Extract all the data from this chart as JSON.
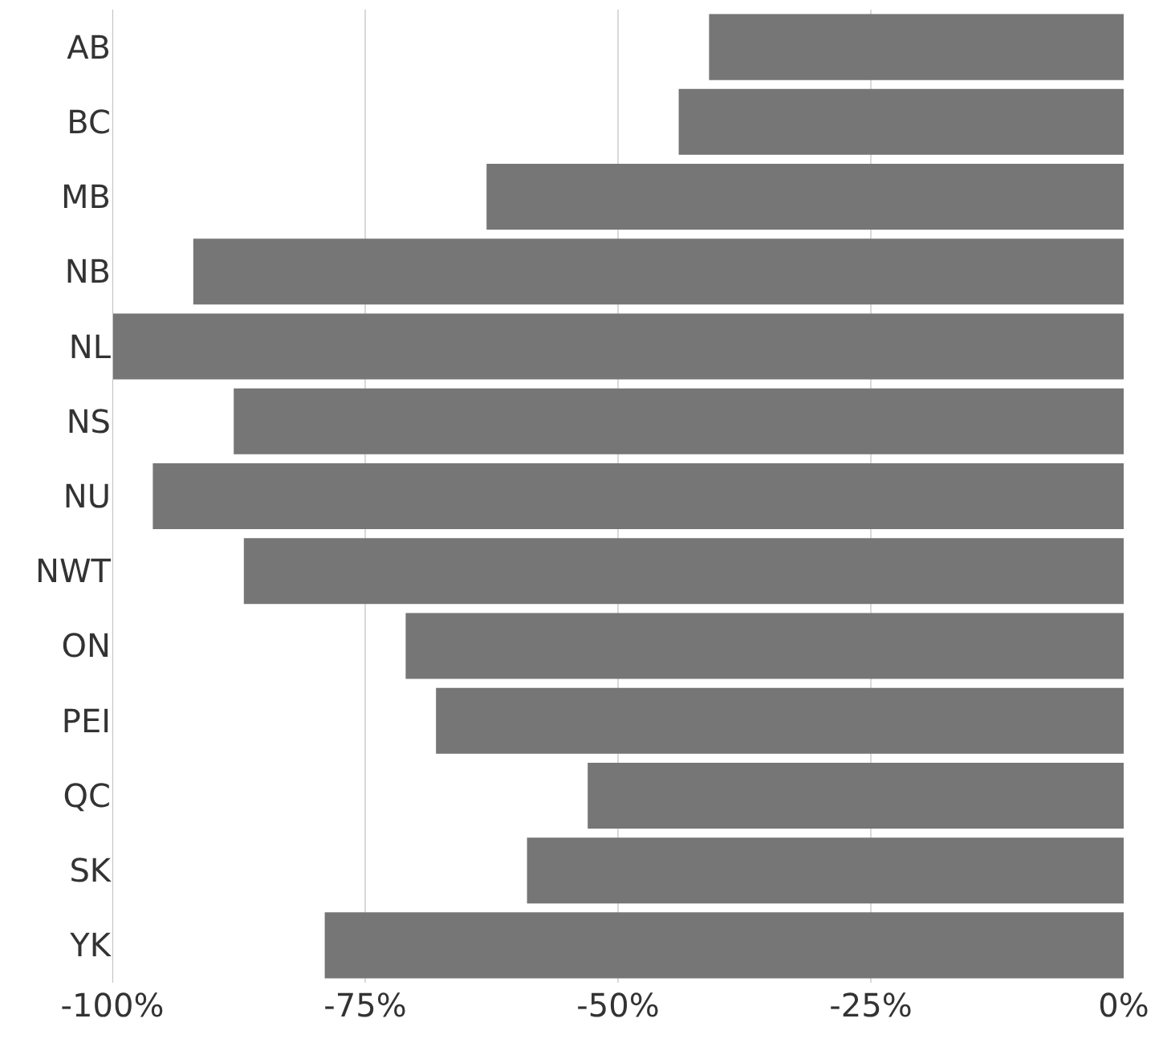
{
  "chart_data": {
    "type": "bar",
    "orientation": "horizontal",
    "categories": [
      "AB",
      "BC",
      "MB",
      "NB",
      "NL",
      "NS",
      "NU",
      "NWT",
      "ON",
      "PEI",
      "QC",
      "SK",
      "YK"
    ],
    "values": [
      -41,
      -44,
      -63,
      -92,
      -100,
      -88,
      -96,
      -87,
      -71,
      -68,
      -53,
      -59,
      -79
    ],
    "color": "#767676",
    "xlim": [
      -100,
      0
    ],
    "xticks": [
      {
        "value": -100,
        "label": "-100%"
      },
      {
        "value": -75,
        "label": "-75%"
      },
      {
        "value": -50,
        "label": "-50%"
      },
      {
        "value": -25,
        "label": "-25%"
      },
      {
        "value": 0,
        "label": "0%"
      }
    ],
    "grid": "x"
  }
}
